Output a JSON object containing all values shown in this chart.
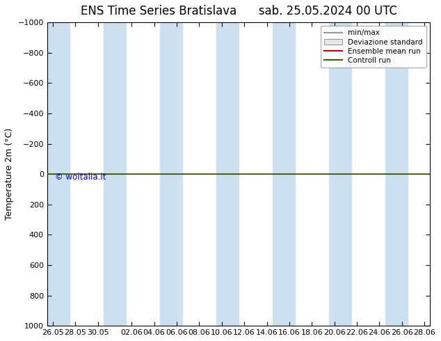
{
  "title_left": "ENS Time Series Bratislava",
  "title_right": "sab. 25.05.2024 00 UTC",
  "ylabel": "Temperature 2m (°C)",
  "ylim_bottom": 1000,
  "ylim_top": -1000,
  "yticks": [
    -1000,
    -800,
    -600,
    -400,
    -200,
    0,
    200,
    400,
    600,
    800,
    1000
  ],
  "background_color": "#ffffff",
  "plot_bg_color": "#ffffff",
  "band_color": "#cce0f0",
  "watermark": "© woitalia.it",
  "watermark_color": "#0000cc",
  "legend_entries": [
    "min/max",
    "Deviazione standard",
    "Ensemble mean run",
    "Controll run"
  ],
  "legend_line_colors": [
    "#999999",
    "#cccccc",
    "#cc0000",
    "#336600"
  ],
  "control_run_y": 0,
  "ensemble_mean_y": 0,
  "x_tick_labels": [
    "26.05",
    "28.05",
    "30.05",
    "02.06",
    "04.06",
    "06.06",
    "08.06",
    "10.06",
    "12.06",
    "14.06",
    "16.06",
    "18.06",
    "20.06",
    "22.06",
    "24.06",
    "26.06",
    "28.06"
  ],
  "x_tick_positions": [
    0,
    2,
    4,
    7,
    9,
    11,
    13,
    15,
    17,
    19,
    21,
    23,
    25,
    27,
    29,
    31,
    33
  ],
  "band_positions": [
    [
      -0.5,
      1.5
    ],
    [
      4.5,
      6.5
    ],
    [
      9.5,
      11.5
    ],
    [
      14.5,
      16.5
    ],
    [
      19.5,
      21.5
    ],
    [
      24.5,
      26.5
    ],
    [
      29.5,
      31.5
    ]
  ],
  "x_min": -0.5,
  "x_max": 33.5,
  "title_fontsize": 12,
  "axis_label_fontsize": 9,
  "tick_fontsize": 8
}
